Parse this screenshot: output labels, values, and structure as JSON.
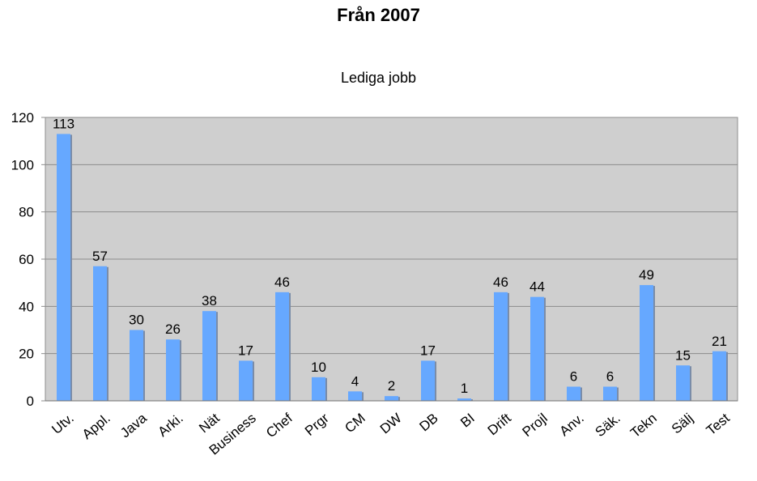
{
  "chart_data": {
    "type": "bar",
    "title": "Från 2007",
    "subtitle": "Lediga jobb",
    "categories": [
      "Utv.",
      "Appl.",
      "Java",
      "Arki.",
      "Nät",
      "Business",
      "Chef",
      "Prgr",
      "CM",
      "DW",
      "DB",
      "BI",
      "Drift",
      "Projl",
      "Anv.",
      "Säk.",
      "Tekn",
      "Sälj",
      "Test"
    ],
    "values": [
      113,
      57,
      30,
      26,
      38,
      17,
      46,
      10,
      4,
      2,
      17,
      1,
      46,
      44,
      6,
      6,
      49,
      15,
      21
    ],
    "ylim": [
      0,
      120
    ],
    "yticks": [
      0,
      20,
      40,
      60,
      80,
      100,
      120
    ],
    "grid": true,
    "colors": {
      "bar": "#66a8ff",
      "bar_shadow": "#7a8ca8",
      "plot_bg": "#cfcfcf",
      "grid": "#8c8c8c"
    }
  }
}
